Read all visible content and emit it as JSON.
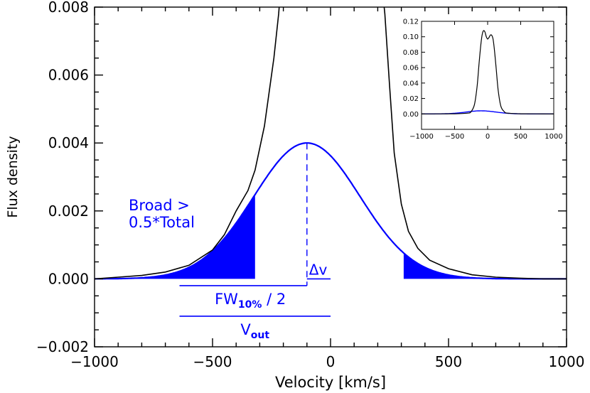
{
  "chart_data": {
    "main": {
      "type": "line",
      "xlabel": "Velocity [km/s]",
      "ylabel": "Flux density",
      "xlim": [
        -1000,
        1000
      ],
      "ylim": [
        -0.002,
        0.008
      ],
      "x_ticks": [
        -1000,
        -500,
        0,
        500,
        1000
      ],
      "x_tick_labels": [
        "−1000",
        "−500",
        "0",
        "500",
        "1000"
      ],
      "y_ticks": [
        -0.002,
        0.0,
        0.002,
        0.004,
        0.006,
        0.008
      ],
      "y_tick_labels": [
        "−0.002",
        "0.000",
        "0.002",
        "0.004",
        "0.006",
        "0.008"
      ],
      "grid": false,
      "series": [
        {
          "id": "total",
          "color": "#000000",
          "points": [
            [
              -1000,
              0.0
            ],
            [
              -900,
              5e-05
            ],
            [
              -800,
              0.0001
            ],
            [
              -700,
              0.0002
            ],
            [
              -600,
              0.0004
            ],
            [
              -500,
              0.00085
            ],
            [
              -450,
              0.0013
            ],
            [
              -400,
              0.002
            ],
            [
              -350,
              0.0026
            ],
            [
              -320,
              0.0032
            ],
            [
              -280,
              0.0045
            ],
            [
              -240,
              0.0065
            ],
            [
              -220,
              0.0078
            ],
            [
              -212,
              0.0085
            ],
            [
              220,
              0.0085
            ],
            [
              230,
              0.0078
            ],
            [
              250,
              0.0057
            ],
            [
              270,
              0.0037
            ],
            [
              300,
              0.0022
            ],
            [
              330,
              0.0014
            ],
            [
              370,
              0.0009
            ],
            [
              420,
              0.00055
            ],
            [
              500,
              0.0003
            ],
            [
              600,
              0.00012
            ],
            [
              700,
              5e-05
            ],
            [
              800,
              2e-05
            ],
            [
              900,
              0.0
            ],
            [
              1000,
              0.0
            ]
          ]
        },
        {
          "id": "broad",
          "color": "#0000ff",
          "gaussian": {
            "amplitude": 0.004,
            "center": -100,
            "sigma": 225
          }
        }
      ],
      "shaded_regions": [
        {
          "from": -1000,
          "to": -320
        },
        {
          "from": 310,
          "to": 1000
        }
      ],
      "annotations": {
        "broad_label_line1": "Broad >",
        "broad_label_line2": "0.5*Total",
        "delta_v": "Δv",
        "fw_main": "FW",
        "fw_sub": "10%",
        "fw_suffix": " / 2",
        "vout_main": "V",
        "vout_sub": "out"
      },
      "peak_velocity": -100,
      "fw_bar": {
        "from": -640,
        "to": -100,
        "y": -0.0002
      },
      "vout_bar": {
        "from": -640,
        "to": 0,
        "y": -0.0011
      },
      "delta_v_bar": {
        "from": -100,
        "to": 0,
        "y": 0.0
      }
    },
    "inset": {
      "type": "line",
      "xlim": [
        -1000,
        1000
      ],
      "ylim": [
        -0.02,
        0.12
      ],
      "x_ticks": [
        -1000,
        -500,
        0,
        500,
        1000
      ],
      "x_tick_labels": [
        "−1000",
        "−500",
        "0",
        "500",
        "1000"
      ],
      "y_ticks": [
        0.0,
        0.02,
        0.04,
        0.06,
        0.08,
        0.1,
        0.12
      ],
      "y_tick_labels": [
        "0.00",
        "0.02",
        "0.04",
        "0.06",
        "0.08",
        "0.10",
        "0.12"
      ],
      "series": [
        {
          "id": "total",
          "color": "#000000",
          "points": [
            [
              -1000,
              0.0
            ],
            [
              -500,
              0.0002
            ],
            [
              -300,
              0.001
            ],
            [
              -250,
              0.003
            ],
            [
              -200,
              0.012
            ],
            [
              -160,
              0.035
            ],
            [
              -130,
              0.065
            ],
            [
              -100,
              0.092
            ],
            [
              -80,
              0.104
            ],
            [
              -60,
              0.108
            ],
            [
              -40,
              0.106
            ],
            [
              -20,
              0.1
            ],
            [
              0,
              0.097
            ],
            [
              20,
              0.099
            ],
            [
              40,
              0.102
            ],
            [
              60,
              0.102
            ],
            [
              80,
              0.098
            ],
            [
              100,
              0.085
            ],
            [
              130,
              0.058
            ],
            [
              160,
              0.03
            ],
            [
              200,
              0.01
            ],
            [
              250,
              0.003
            ],
            [
              300,
              0.001
            ],
            [
              500,
              0.0002
            ],
            [
              1000,
              0.0
            ]
          ]
        },
        {
          "id": "broad",
          "color": "#0000ff",
          "gaussian": {
            "amplitude": 0.004,
            "center": -100,
            "sigma": 225
          }
        }
      ]
    }
  }
}
